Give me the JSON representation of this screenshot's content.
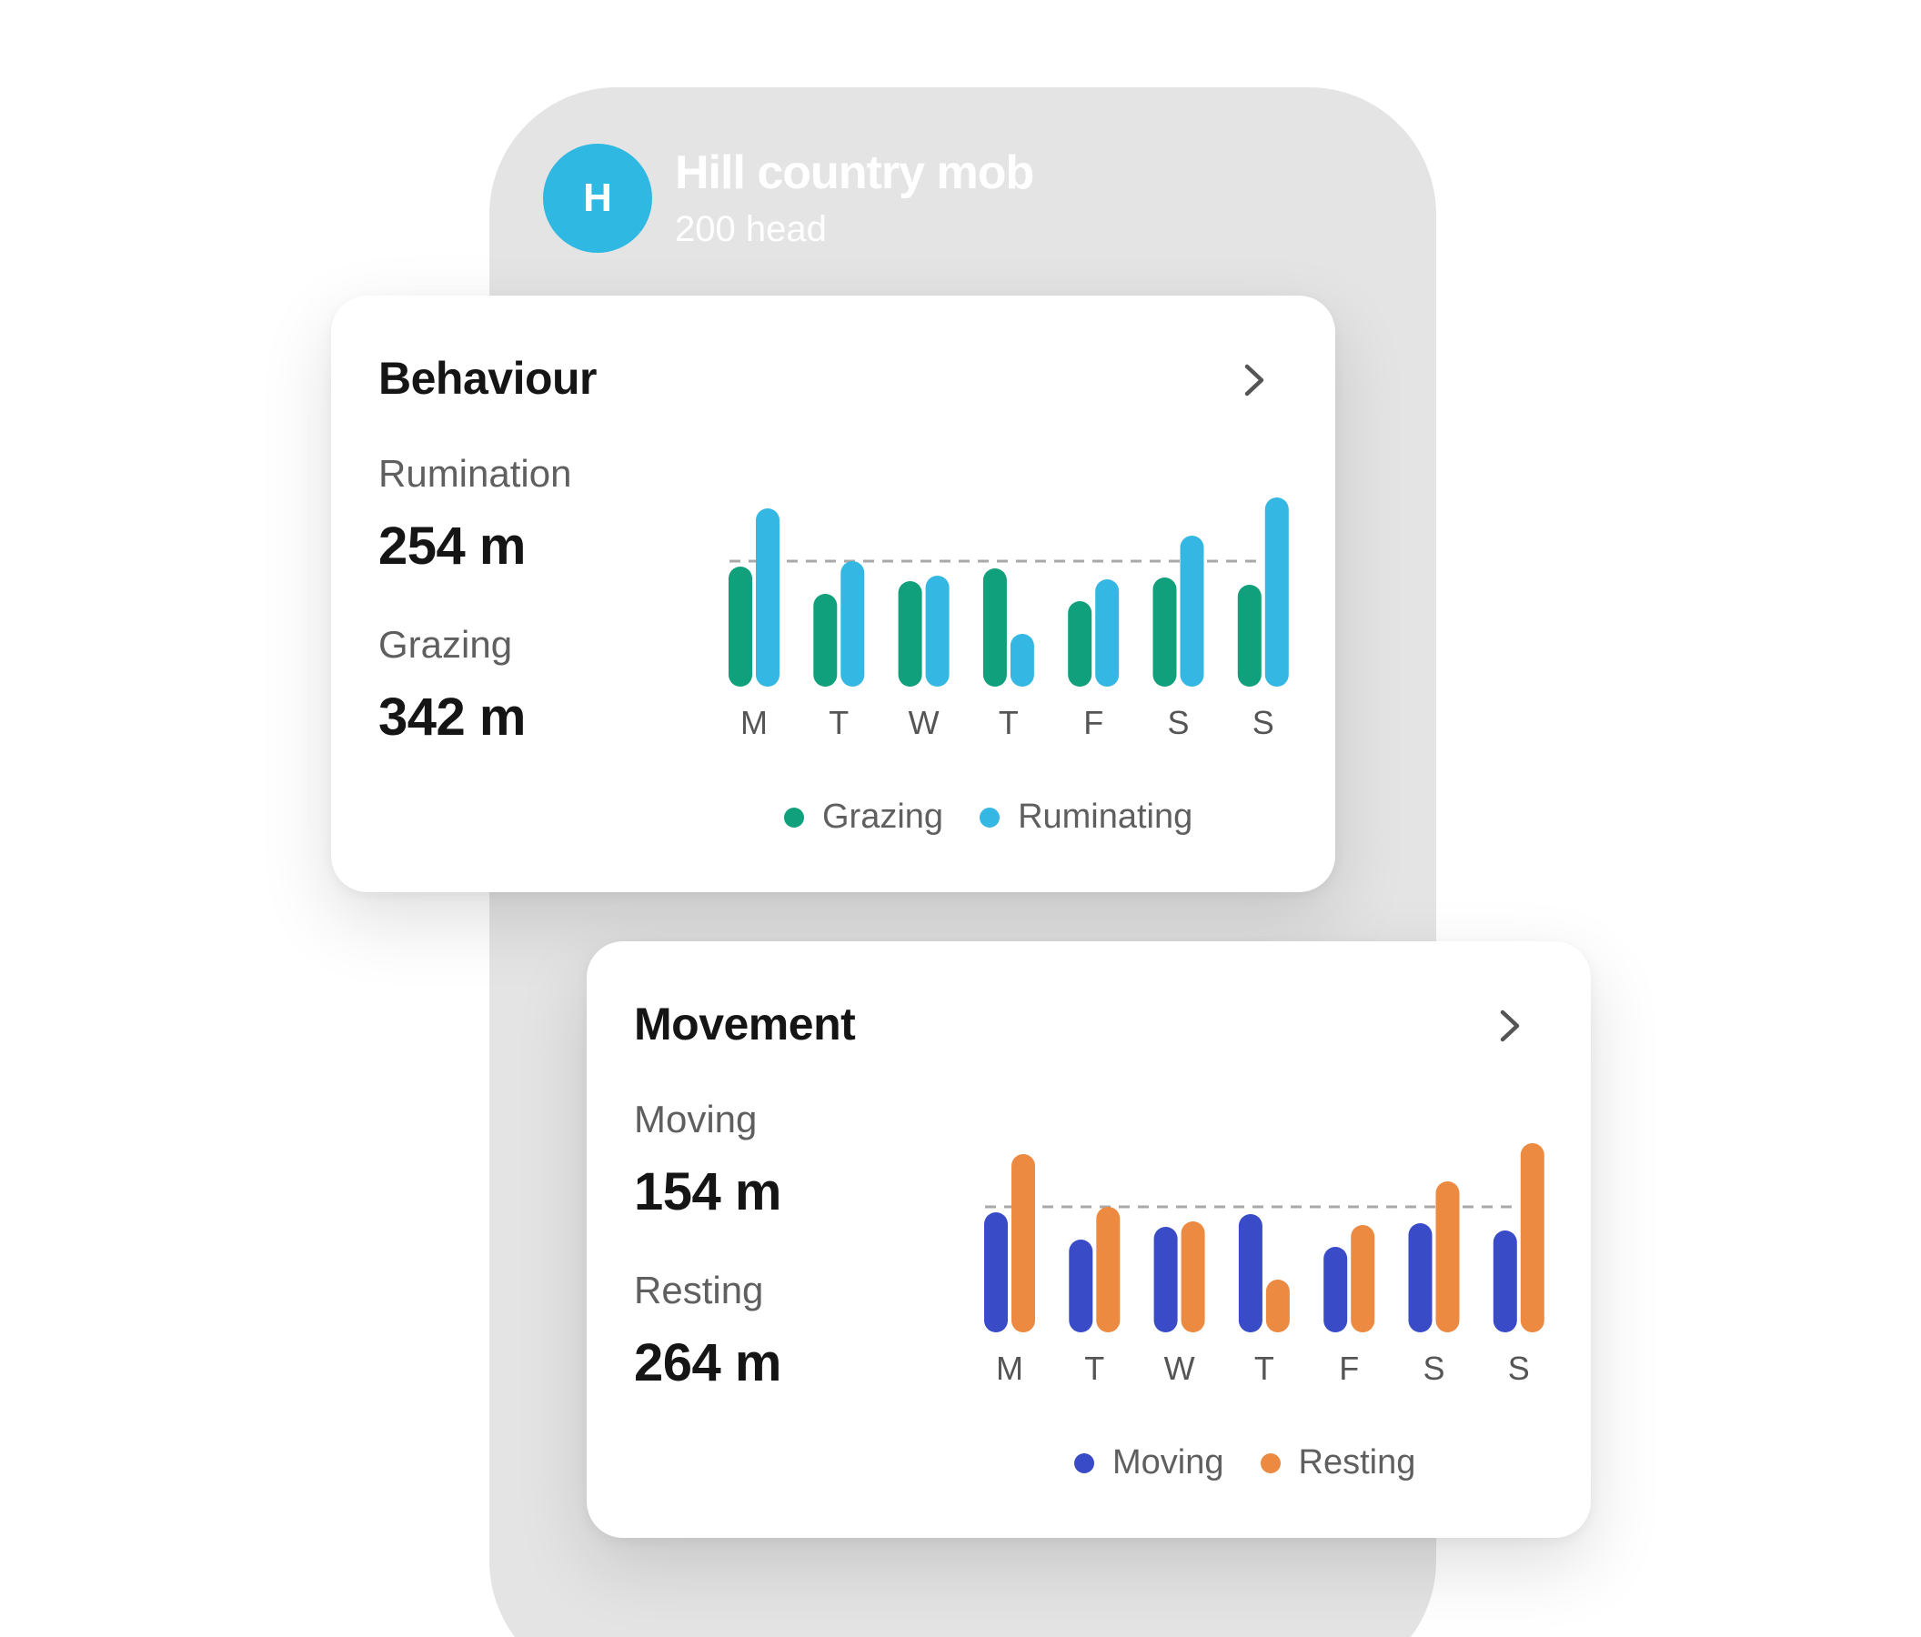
{
  "mob": {
    "avatar_letter": "H",
    "name": "Hill country mob",
    "subtitle": "200 head"
  },
  "behaviour": {
    "title": "Behaviour",
    "stats": [
      {
        "label": "Rumination",
        "value": "254 m"
      },
      {
        "label": "Grazing",
        "value": "342 m"
      }
    ],
    "legend": [
      {
        "label": "Grazing",
        "color": "#10a07b"
      },
      {
        "label": "Ruminating",
        "color": "#34b8e3"
      }
    ]
  },
  "movement": {
    "title": "Movement",
    "stats": [
      {
        "label": "Moving",
        "value": "154 m"
      },
      {
        "label": "Resting",
        "value": "264 m"
      }
    ],
    "legend": [
      {
        "label": "Moving",
        "color": "#3a4bc7"
      },
      {
        "label": "Resting",
        "color": "#ec8a41"
      }
    ]
  },
  "icons": {
    "chevron": "chevron-right-icon"
  },
  "chart_data": [
    {
      "type": "bar",
      "categories": [
        "M",
        "T",
        "W",
        "T",
        "F",
        "S",
        "S"
      ],
      "series": [
        {
          "name": "Grazing",
          "color": "#10a07b",
          "values": [
            66,
            51,
            58,
            65,
            47,
            60,
            56
          ]
        },
        {
          "name": "Ruminating",
          "color": "#34b8e3",
          "values": [
            98,
            69,
            61,
            29,
            59,
            83,
            104
          ]
        }
      ],
      "reference_line": 69,
      "ylim": [
        0,
        110
      ],
      "grid": false,
      "legend_position": "bottom"
    },
    {
      "type": "bar",
      "categories": [
        "M",
        "T",
        "W",
        "T",
        "F",
        "S",
        "S"
      ],
      "series": [
        {
          "name": "Moving",
          "color": "#3a4bc7",
          "values": [
            66,
            51,
            58,
            65,
            47,
            60,
            56
          ]
        },
        {
          "name": "Resting",
          "color": "#ec8a41",
          "values": [
            98,
            69,
            61,
            29,
            59,
            83,
            104
          ]
        }
      ],
      "reference_line": 69,
      "ylim": [
        0,
        110
      ],
      "grid": false,
      "legend_position": "bottom"
    }
  ]
}
